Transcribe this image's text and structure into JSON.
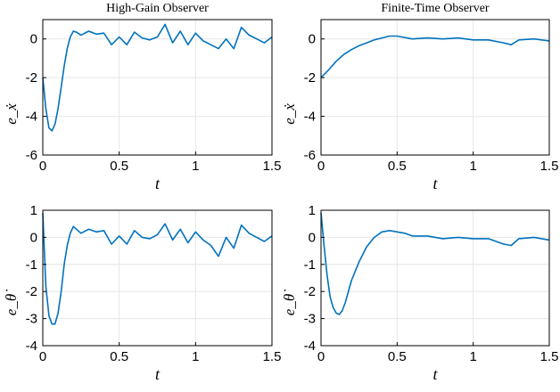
{
  "figure": {
    "background": "#ffffff",
    "line_color": "#0072BD",
    "grid_color": "#e6e6e6"
  },
  "chart_data": [
    {
      "type": "line",
      "title": "High-Gain Observer",
      "xlabel": "t",
      "ylabel": "e_ẋ",
      "xlim": [
        0,
        1.5
      ],
      "ylim": [
        -6,
        1
      ],
      "xticks": [
        "0",
        "0.5",
        "1",
        "1.5"
      ],
      "yticks": [
        "-6",
        "-4",
        "-2",
        "0"
      ],
      "grid": true,
      "series": [
        {
          "x": [
            0,
            0.02,
            0.04,
            0.06,
            0.08,
            0.1,
            0.12,
            0.14,
            0.16,
            0.18,
            0.2,
            0.22,
            0.25,
            0.3,
            0.35,
            0.4,
            0.45,
            0.5,
            0.55,
            0.6,
            0.65,
            0.7,
            0.75,
            0.8,
            0.85,
            0.9,
            0.95,
            1.0,
            1.05,
            1.1,
            1.15,
            1.2,
            1.25,
            1.3,
            1.35,
            1.4,
            1.45,
            1.5
          ],
          "y": [
            -2.0,
            -3.6,
            -4.6,
            -4.75,
            -4.4,
            -3.6,
            -2.5,
            -1.4,
            -0.5,
            0.1,
            0.4,
            0.35,
            0.2,
            0.4,
            0.25,
            0.3,
            -0.3,
            0.1,
            -0.3,
            0.35,
            0.05,
            -0.05,
            0.1,
            0.75,
            -0.2,
            0.4,
            -0.3,
            0.3,
            -0.1,
            -0.3,
            -0.5,
            0.0,
            -0.5,
            0.6,
            0.2,
            0.0,
            -0.2,
            0.1
          ]
        }
      ]
    },
    {
      "type": "line",
      "title": "Finite-Time Observer",
      "xlabel": "t",
      "ylabel": "e_ẋ",
      "xlim": [
        0,
        1.5
      ],
      "ylim": [
        -6,
        1
      ],
      "xticks": [
        "0",
        "0.5",
        "1",
        "1.5"
      ],
      "yticks": [
        "-6",
        "-4",
        "-2",
        "0"
      ],
      "grid": true,
      "series": [
        {
          "x": [
            0,
            0.05,
            0.1,
            0.15,
            0.2,
            0.25,
            0.3,
            0.35,
            0.4,
            0.45,
            0.5,
            0.6,
            0.7,
            0.8,
            0.9,
            1.0,
            1.1,
            1.2,
            1.25,
            1.3,
            1.4,
            1.5
          ],
          "y": [
            -2.0,
            -1.6,
            -1.15,
            -0.8,
            -0.55,
            -0.35,
            -0.2,
            -0.05,
            0.05,
            0.15,
            0.15,
            0.0,
            0.05,
            0.0,
            0.05,
            -0.05,
            -0.05,
            -0.2,
            -0.3,
            -0.05,
            0.0,
            -0.1
          ]
        }
      ]
    },
    {
      "type": "line",
      "title": "",
      "xlabel": "t",
      "ylabel": "e_θ̇",
      "xlim": [
        0,
        1.5
      ],
      "ylim": [
        -4,
        1
      ],
      "xticks": [
        "0",
        "0.5",
        "1",
        "1.5"
      ],
      "yticks": [
        "-4",
        "-3",
        "-2",
        "-1",
        "0",
        "1"
      ],
      "grid": true,
      "series": [
        {
          "x": [
            0,
            0.02,
            0.04,
            0.06,
            0.08,
            0.1,
            0.12,
            0.14,
            0.16,
            0.18,
            0.2,
            0.22,
            0.25,
            0.3,
            0.35,
            0.4,
            0.45,
            0.5,
            0.55,
            0.6,
            0.65,
            0.7,
            0.75,
            0.8,
            0.85,
            0.9,
            0.95,
            1.0,
            1.05,
            1.1,
            1.15,
            1.2,
            1.25,
            1.3,
            1.35,
            1.4,
            1.45,
            1.5
          ],
          "y": [
            0.9,
            -1.8,
            -2.9,
            -3.2,
            -3.2,
            -2.8,
            -2.0,
            -1.0,
            -0.3,
            0.15,
            0.4,
            0.3,
            0.15,
            0.3,
            0.2,
            0.25,
            -0.25,
            0.05,
            -0.25,
            0.25,
            0.0,
            -0.05,
            0.1,
            0.5,
            -0.1,
            0.3,
            -0.2,
            0.2,
            -0.1,
            -0.3,
            -0.7,
            0.0,
            -0.4,
            0.45,
            0.15,
            0.0,
            -0.15,
            0.05
          ]
        }
      ]
    },
    {
      "type": "line",
      "title": "",
      "xlabel": "t",
      "ylabel": "e_θ̇",
      "xlim": [
        0,
        1.5
      ],
      "ylim": [
        -4,
        1
      ],
      "xticks": [
        "0",
        "0.5",
        "1",
        "1.5"
      ],
      "yticks": [
        "-4",
        "-3",
        "-2",
        "-1",
        "0",
        "1"
      ],
      "grid": true,
      "series": [
        {
          "x": [
            0,
            0.02,
            0.04,
            0.06,
            0.08,
            0.1,
            0.12,
            0.14,
            0.16,
            0.2,
            0.25,
            0.3,
            0.35,
            0.4,
            0.45,
            0.5,
            0.55,
            0.6,
            0.7,
            0.8,
            0.9,
            1.0,
            1.1,
            1.2,
            1.25,
            1.3,
            1.4,
            1.5
          ],
          "y": [
            0.9,
            -0.3,
            -1.4,
            -2.2,
            -2.6,
            -2.8,
            -2.85,
            -2.7,
            -2.4,
            -1.6,
            -0.9,
            -0.35,
            0.0,
            0.2,
            0.25,
            0.2,
            0.15,
            0.05,
            0.05,
            -0.05,
            0.0,
            -0.05,
            -0.05,
            -0.25,
            -0.3,
            -0.05,
            0.0,
            -0.1
          ]
        }
      ]
    }
  ]
}
